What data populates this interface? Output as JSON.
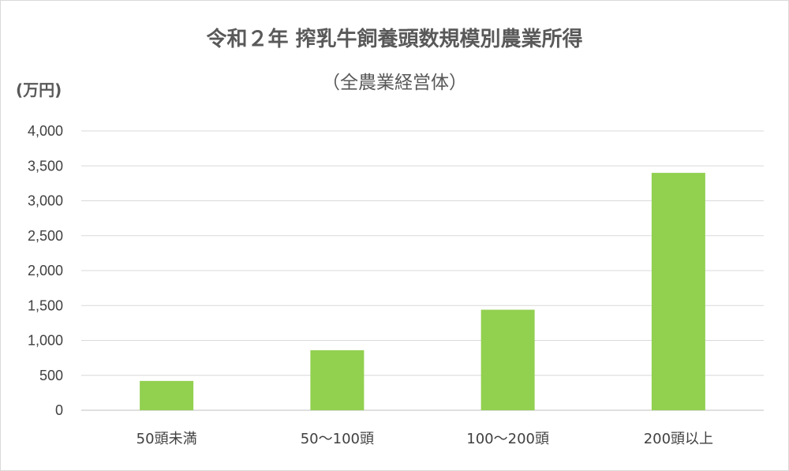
{
  "chart_data": {
    "type": "bar",
    "title": "令和２年 搾乳牛飼養頭数規模別農業所得",
    "subtitle": "（全農業経営体）",
    "ylabel": "(万円)",
    "xlabel": "",
    "categories": [
      "50頭未満",
      "50～100頭",
      "100～200頭",
      "200頭以上"
    ],
    "values": [
      420,
      860,
      1440,
      3400
    ],
    "ylim": [
      0,
      4000
    ],
    "yticks": [
      0,
      500,
      1000,
      1500,
      2000,
      2500,
      3000,
      3500,
      4000
    ],
    "ytick_labels": [
      "0",
      "500",
      "1,000",
      "1,500",
      "2,000",
      "2,500",
      "3,000",
      "3,500",
      "4,000"
    ],
    "grid": true,
    "legend": "none",
    "bar_color": "#92d050"
  }
}
